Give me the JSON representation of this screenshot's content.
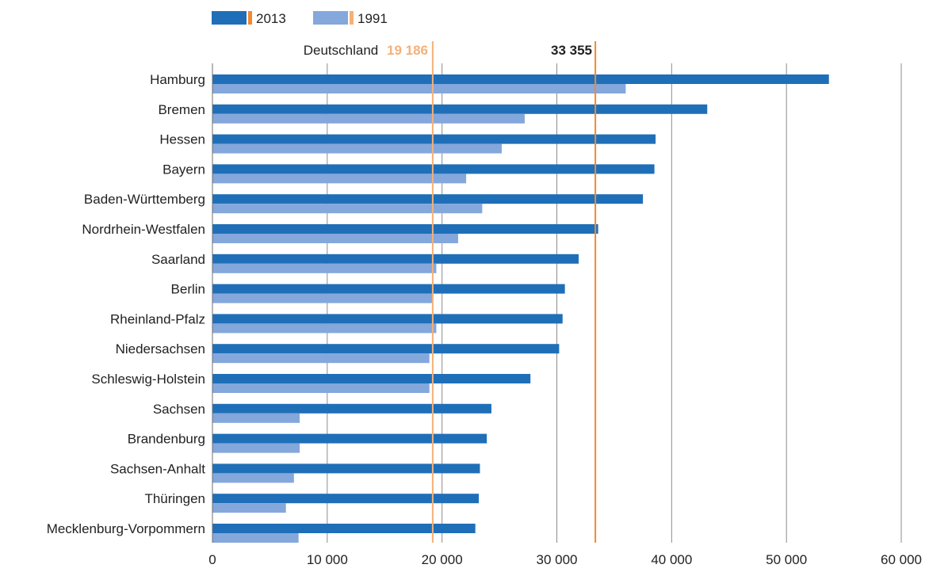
{
  "chart_data": {
    "type": "bar",
    "orientation": "horizontal",
    "categories": [
      "Hamburg",
      "Bremen",
      "Hessen",
      "Bayern",
      "Baden-Württemberg",
      "Nordrhein-Westfalen",
      "Saarland",
      "Berlin",
      "Rheinland-Pfalz",
      "Niedersachsen",
      "Schleswig-Holstein",
      "Sachsen",
      "Brandenburg",
      "Sachsen-Anhalt",
      "Thüringen",
      "Mecklenburg-Vorpommern"
    ],
    "series": [
      {
        "name": "2013",
        "color": "#1f6fb8",
        "values": [
          53700,
          43100,
          38600,
          38500,
          37500,
          33600,
          31900,
          30700,
          30500,
          30200,
          27700,
          24300,
          23900,
          23300,
          23200,
          22900
        ]
      },
      {
        "name": "1991",
        "color": "#84a7dc",
        "values": [
          36000,
          27200,
          25200,
          22100,
          23500,
          21400,
          19500,
          19200,
          19500,
          18900,
          18900,
          7600,
          7600,
          7100,
          6400,
          7500
        ]
      }
    ],
    "xlim": [
      0,
      60000
    ],
    "xticks": [
      "0",
      "10 000",
      "20 000",
      "30 000",
      "40 000",
      "50 000",
      "60 000"
    ],
    "grid": true,
    "legend_position": "top-left",
    "reference_lines": [
      {
        "prefix": "Deutschland",
        "label": "19 186",
        "value": 19186,
        "series": "1991",
        "color": "#f5b078"
      },
      {
        "prefix": "",
        "label": "33 355",
        "value": 33355,
        "series": "2013",
        "color": "#ef8a33"
      }
    ],
    "legend_marker_color": "#ef8a33",
    "legend_marker_light_color": "#f5b078"
  }
}
